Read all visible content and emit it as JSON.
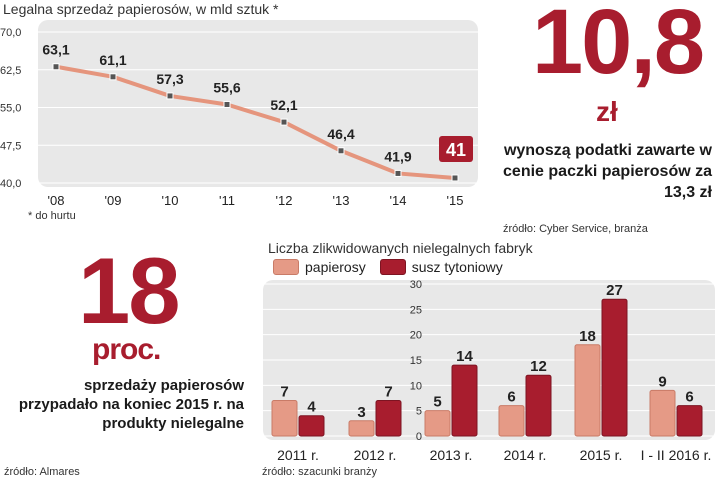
{
  "line_chart": {
    "title": "Legalna sprzedaż papierosów, w mld sztuk *",
    "note": "* do hurtu"
  },
  "right_block": {
    "value": "10,8",
    "unit": "zł",
    "description": "wynoszą podatki zawarte w cenie paczki papierosów za 13,3 zł",
    "source": "źródło: Cyber Service, branża"
  },
  "left_block": {
    "value": "18",
    "unit": "proc.",
    "description": "sprzedaży papierosów przypadało na koniec 2015 r. na produkty nielegalne",
    "source": "źródło: Almares"
  },
  "bar_chart": {
    "title": "Liczba zlikwidowanych nielegalnych fabryk",
    "legend": [
      "papierosy",
      "susz tytoniowy"
    ],
    "source": "źródło: szacunki branży"
  },
  "colors": {
    "accent": "#a81d2e",
    "line": "#e5957d",
    "salmon": "#e59a86",
    "crimson": "#a81d2e",
    "panel": "#e8e8e8"
  },
  "chart_data": [
    {
      "type": "line",
      "title": "Legalna sprzedaż papierosów, w mld sztuk *",
      "categories": [
        "'08",
        "'09",
        "'10",
        "'11",
        "'12",
        "'13",
        "'14",
        "'15"
      ],
      "values": [
        63.1,
        61.1,
        57.3,
        55.6,
        52.1,
        46.4,
        41.9,
        41
      ],
      "labels": [
        "63,1",
        "61,1",
        "57,3",
        "55,6",
        "52,1",
        "46,4",
        "41,9",
        "41"
      ],
      "yticks": [
        40.0,
        47.5,
        55.0,
        62.5,
        70.0
      ],
      "ytick_labels": [
        "40,0",
        "47,5",
        "55,0",
        "62,5",
        "70,0"
      ],
      "ylim": [
        40,
        70
      ],
      "highlight_index": 7
    },
    {
      "type": "bar",
      "title": "Liczba zlikwidowanych nielegalnych fabryk",
      "categories": [
        "2011 r.",
        "2012 r.",
        "2013 r.",
        "2014 r.",
        "2015 r.",
        "I - II 2016 r."
      ],
      "series": [
        {
          "name": "papierosy",
          "values": [
            7,
            3,
            5,
            6,
            18,
            9
          ]
        },
        {
          "name": "susz tytoniowy",
          "values": [
            4,
            7,
            14,
            12,
            27,
            6
          ]
        }
      ],
      "yticks": [
        0,
        5,
        10,
        15,
        20,
        25,
        30
      ],
      "ylim": [
        0,
        30
      ]
    }
  ]
}
